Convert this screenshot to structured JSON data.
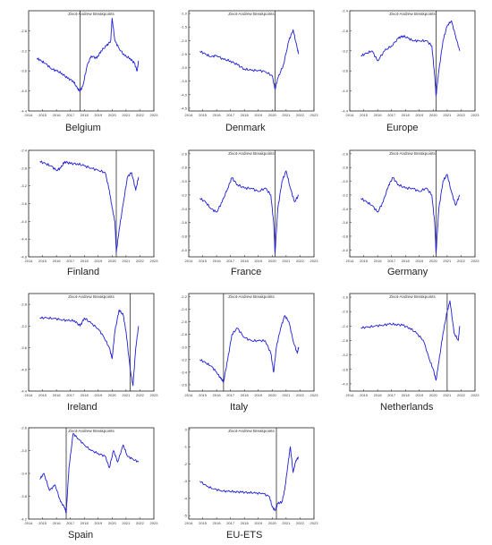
{
  "chart_data": [
    {
      "type": "line",
      "caption": "Belgium",
      "title": "Zivot-Andrew Breakpoints",
      "x_ticks": [
        "2014",
        "2015",
        "2016",
        "2017",
        "2018",
        "2019",
        "2020",
        "2021",
        "2022",
        "2023"
      ],
      "y_ticks": [
        "-2.8",
        "-3.2",
        "-3.6",
        "-4.0",
        "-4.4"
      ],
      "ylim": [
        -4.4,
        -2.4
      ],
      "xlim": [
        2014,
        2023
      ],
      "breakpoint": 2017.7,
      "series": [
        {
          "x": [
            2014.6,
            2014.9,
            2015.2,
            2015.6,
            2016.0,
            2016.4,
            2016.8,
            2017.2,
            2017.5,
            2017.7,
            2017.9,
            2018.2,
            2018.5,
            2018.9,
            2019.2,
            2019.6,
            2019.9,
            2020.0,
            2020.2,
            2020.5,
            2020.9,
            2021.3,
            2021.6,
            2021.8,
            2021.9
          ],
          "y": [
            -3.35,
            -3.4,
            -3.45,
            -3.55,
            -3.6,
            -3.65,
            -3.75,
            -3.8,
            -3.95,
            -4.0,
            -3.9,
            -3.5,
            -3.3,
            -3.35,
            -3.2,
            -3.1,
            -3.0,
            -2.55,
            -3.0,
            -3.15,
            -3.3,
            -3.35,
            -3.45,
            -3.6,
            -3.4
          ]
        }
      ]
    },
    {
      "type": "line",
      "caption": "Denmark",
      "title": "Zivot-Andrew Breakpoints",
      "x_ticks": [
        "2014",
        "2015",
        "2016",
        "2017",
        "2018",
        "2019",
        "2020",
        "2021",
        "2022",
        "2023"
      ],
      "y_ticks": [
        "-1.0",
        "-1.5",
        "-2.0",
        "-2.5",
        "-3.0",
        "-3.5",
        "-4.0",
        "-4.5"
      ],
      "ylim": [
        -4.6,
        -0.9
      ],
      "xlim": [
        2014,
        2023
      ],
      "breakpoint": 2020.2,
      "series": [
        {
          "x": [
            2014.8,
            2015.2,
            2015.6,
            2016.0,
            2016.5,
            2017.0,
            2017.5,
            2018.0,
            2018.5,
            2019.0,
            2019.5,
            2020.0,
            2020.2,
            2020.4,
            2020.8,
            2021.2,
            2021.5,
            2021.8,
            2021.9
          ],
          "y": [
            -2.4,
            -2.5,
            -2.6,
            -2.55,
            -2.7,
            -2.75,
            -2.9,
            -3.05,
            -3.1,
            -3.1,
            -3.15,
            -3.3,
            -3.8,
            -3.4,
            -2.9,
            -2.0,
            -1.6,
            -2.3,
            -2.5
          ]
        }
      ]
    },
    {
      "type": "line",
      "caption": "Europe",
      "title": "Zivot-Andrew Breakpoints",
      "x_ticks": [
        "2014",
        "2015",
        "2016",
        "2017",
        "2018",
        "2019",
        "2020",
        "2021",
        "2022",
        "2023"
      ],
      "y_ticks": [
        "-2.4",
        "-2.8",
        "-3.2",
        "-3.6",
        "-4.0",
        "-4.4"
      ],
      "ylim": [
        -4.4,
        -2.4
      ],
      "xlim": [
        2014,
        2023
      ],
      "breakpoint": 2020.2,
      "series": [
        {
          "x": [
            2014.8,
            2015.2,
            2015.6,
            2016.0,
            2016.5,
            2017.0,
            2017.5,
            2017.8,
            2018.2,
            2018.6,
            2019.0,
            2019.5,
            2019.9,
            2020.1,
            2020.2,
            2020.4,
            2020.7,
            2021.0,
            2021.3,
            2021.6,
            2021.9
          ],
          "y": [
            -3.3,
            -3.25,
            -3.2,
            -3.4,
            -3.2,
            -3.1,
            -2.95,
            -2.9,
            -2.95,
            -3.0,
            -3.0,
            -3.0,
            -3.1,
            -3.7,
            -4.1,
            -3.6,
            -3.0,
            -2.7,
            -2.6,
            -2.9,
            -3.2
          ]
        }
      ]
    },
    {
      "type": "line",
      "caption": "Finland",
      "title": "",
      "x_ticks": [
        "2014",
        "2015",
        "2016",
        "2017",
        "2018",
        "2019",
        "2020",
        "2021",
        "2022",
        "2023"
      ],
      "y_ticks": [
        "-2.4",
        "-2.8",
        "-3.2",
        "-3.6",
        "-4.0",
        "-4.4",
        "-4.8"
      ],
      "ylim": [
        -4.8,
        -2.4
      ],
      "xlim": [
        2014,
        2023
      ],
      "breakpoint": 2020.3,
      "series": [
        {
          "x": [
            2014.8,
            2015.2,
            2015.6,
            2016.0,
            2016.3,
            2016.6,
            2017.0,
            2017.5,
            2018.0,
            2018.5,
            2019.0,
            2019.5,
            2019.8,
            2020.0,
            2020.2,
            2020.3,
            2020.5,
            2020.8,
            2021.1,
            2021.4,
            2021.7,
            2021.9
          ],
          "y": [
            -2.65,
            -2.7,
            -2.75,
            -2.85,
            -2.8,
            -2.65,
            -2.7,
            -2.7,
            -2.75,
            -2.8,
            -2.85,
            -2.9,
            -3.3,
            -3.7,
            -4.0,
            -4.7,
            -4.2,
            -3.6,
            -3.0,
            -2.9,
            -3.3,
            -3.0
          ]
        }
      ]
    },
    {
      "type": "line",
      "caption": "France",
      "title": "Zivot-Andrew Breakpoints",
      "x_ticks": [
        "2014",
        "2015",
        "2016",
        "2017",
        "2018",
        "2019",
        "2020",
        "2021",
        "2022",
        "2023"
      ],
      "y_ticks": [
        "-2.6",
        "-2.8",
        "-3.0",
        "-3.2",
        "-3.4",
        "-3.6",
        "-3.8",
        "-4.0"
      ],
      "ylim": [
        -4.1,
        -2.55
      ],
      "xlim": [
        2014,
        2023
      ],
      "breakpoint": 2020.2,
      "series": [
        {
          "x": [
            2014.8,
            2015.2,
            2015.6,
            2016.0,
            2016.4,
            2016.8,
            2017.1,
            2017.5,
            2018.0,
            2018.5,
            2019.0,
            2019.5,
            2019.9,
            2020.1,
            2020.2,
            2020.4,
            2020.7,
            2021.0,
            2021.3,
            2021.6,
            2021.9
          ],
          "y": [
            -3.25,
            -3.3,
            -3.4,
            -3.45,
            -3.3,
            -3.1,
            -2.95,
            -3.05,
            -3.1,
            -3.1,
            -3.15,
            -3.1,
            -3.2,
            -3.6,
            -4.05,
            -3.4,
            -3.0,
            -2.85,
            -3.1,
            -3.3,
            -3.2
          ]
        }
      ]
    },
    {
      "type": "line",
      "caption": "Germany",
      "title": "Zivot-Andrew Breakpoints",
      "x_ticks": [
        "2014",
        "2015",
        "2016",
        "2017",
        "2018",
        "2019",
        "2020",
        "2021",
        "2022",
        "2023"
      ],
      "y_ticks": [
        "-2.6",
        "-2.8",
        "-3.0",
        "-3.2",
        "-3.4",
        "-3.6",
        "-3.8",
        "-4.0"
      ],
      "ylim": [
        -4.1,
        -2.55
      ],
      "xlim": [
        2014,
        2023
      ],
      "breakpoint": 2020.2,
      "series": [
        {
          "x": [
            2014.8,
            2015.2,
            2015.6,
            2016.0,
            2016.4,
            2016.8,
            2017.1,
            2017.5,
            2018.0,
            2018.5,
            2019.0,
            2019.5,
            2019.9,
            2020.1,
            2020.2,
            2020.4,
            2020.7,
            2021.0,
            2021.3,
            2021.6,
            2021.9
          ],
          "y": [
            -3.25,
            -3.3,
            -3.35,
            -3.45,
            -3.3,
            -3.05,
            -2.95,
            -3.05,
            -3.1,
            -3.1,
            -3.15,
            -3.1,
            -3.2,
            -3.6,
            -4.05,
            -3.4,
            -3.0,
            -2.9,
            -3.15,
            -3.35,
            -3.2
          ]
        }
      ]
    },
    {
      "type": "line",
      "caption": "Ireland",
      "title": "Zivot-Andrew Breakpoints",
      "x_ticks": [
        "2014",
        "2015",
        "2016",
        "2017",
        "2018",
        "2019",
        "2020",
        "2021",
        "2022",
        "2023"
      ],
      "y_ticks": [
        "-2.8",
        "-3.2",
        "-3.6",
        "-4.0",
        "-4.4"
      ],
      "ylim": [
        -4.4,
        -2.6
      ],
      "xlim": [
        2014,
        2023
      ],
      "breakpoint": 2021.3,
      "series": [
        {
          "x": [
            2014.8,
            2015.3,
            2015.8,
            2016.3,
            2016.8,
            2017.3,
            2017.7,
            2018.0,
            2018.5,
            2019.0,
            2019.4,
            2019.8,
            2020.0,
            2020.2,
            2020.5,
            2020.8,
            2021.0,
            2021.3,
            2021.5,
            2021.7,
            2021.9
          ],
          "y": [
            -3.05,
            -3.05,
            -3.06,
            -3.08,
            -3.1,
            -3.1,
            -3.2,
            -3.05,
            -3.15,
            -3.25,
            -3.4,
            -3.6,
            -3.8,
            -3.3,
            -2.9,
            -3.0,
            -3.3,
            -4.0,
            -4.3,
            -3.6,
            -3.2
          ]
        }
      ]
    },
    {
      "type": "line",
      "caption": "Italy",
      "title": "Zivot-Andrew Breakpoints",
      "x_ticks": [
        "2014",
        "2015",
        "2016",
        "2017",
        "2018",
        "2019",
        "2020",
        "2021",
        "2022",
        "2023"
      ],
      "y_ticks": [
        "-2.2",
        "-2.4",
        "-2.6",
        "-2.8",
        "-3.0",
        "-3.2",
        "-3.4",
        "-3.6"
      ],
      "ylim": [
        -3.7,
        -2.15
      ],
      "xlim": [
        2014,
        2023
      ],
      "breakpoint": 2016.5,
      "series": [
        {
          "x": [
            2014.8,
            2015.2,
            2015.6,
            2016.0,
            2016.3,
            2016.5,
            2016.8,
            2017.1,
            2017.5,
            2018.0,
            2018.5,
            2019.0,
            2019.5,
            2019.9,
            2020.1,
            2020.3,
            2020.6,
            2020.9,
            2021.2,
            2021.5,
            2021.8,
            2021.9
          ],
          "y": [
            -3.2,
            -3.25,
            -3.3,
            -3.4,
            -3.5,
            -3.55,
            -3.2,
            -2.8,
            -2.7,
            -2.85,
            -2.9,
            -2.9,
            -2.9,
            -3.1,
            -3.4,
            -3.0,
            -2.7,
            -2.5,
            -2.6,
            -2.9,
            -3.1,
            -3.0
          ]
        }
      ]
    },
    {
      "type": "line",
      "caption": "Netherlands",
      "title": "Zivot-Andrew Breakpoints",
      "x_ticks": [
        "2014",
        "2015",
        "2016",
        "2017",
        "2018",
        "2019",
        "2020",
        "2021",
        "2022",
        "2023"
      ],
      "y_ticks": [
        "-1.6",
        "-2.0",
        "-2.4",
        "-2.8",
        "-3.2",
        "-3.6",
        "-4.0"
      ],
      "ylim": [
        -4.2,
        -1.5
      ],
      "xlim": [
        2014,
        2023
      ],
      "breakpoint": 2021.0,
      "series": [
        {
          "x": [
            2014.8,
            2015.3,
            2015.8,
            2016.3,
            2016.8,
            2017.3,
            2017.8,
            2018.3,
            2018.8,
            2019.3,
            2019.7,
            2020.0,
            2020.2,
            2020.4,
            2020.7,
            2021.0,
            2021.2,
            2021.5,
            2021.8,
            2021.9
          ],
          "y": [
            -2.45,
            -2.43,
            -2.4,
            -2.38,
            -2.35,
            -2.35,
            -2.38,
            -2.45,
            -2.6,
            -2.8,
            -3.3,
            -3.6,
            -3.9,
            -3.4,
            -2.6,
            -2.0,
            -1.7,
            -2.6,
            -2.8,
            -2.4
          ]
        }
      ]
    },
    {
      "type": "line",
      "caption": "Spain",
      "title": "Zivot-Andrew Breakpoints",
      "x_ticks": [
        "2014",
        "2015",
        "2016",
        "2017",
        "2018",
        "2019",
        "2020",
        "2021",
        "2022",
        "2023"
      ],
      "y_ticks": [
        "-2.6",
        "-3.0",
        "-3.4",
        "-3.8",
        "-4.2"
      ],
      "ylim": [
        -4.2,
        -2.6
      ],
      "xlim": [
        2014,
        2023
      ],
      "breakpoint": 2016.7,
      "series": [
        {
          "x": [
            2014.8,
            2015.1,
            2015.5,
            2015.9,
            2016.3,
            2016.6,
            2016.7,
            2016.9,
            2017.2,
            2017.6,
            2018.0,
            2018.5,
            2019.0,
            2019.5,
            2019.8,
            2020.1,
            2020.4,
            2020.8,
            2021.1,
            2021.5,
            2021.9
          ],
          "y": [
            -3.5,
            -3.4,
            -3.7,
            -3.6,
            -3.9,
            -4.0,
            -4.1,
            -3.3,
            -2.7,
            -2.8,
            -2.9,
            -3.0,
            -3.05,
            -3.1,
            -3.3,
            -3.0,
            -3.2,
            -2.9,
            -3.1,
            -3.15,
            -3.2
          ]
        }
      ]
    },
    {
      "type": "line",
      "caption": "EU-ETS",
      "title": "Zivot-Andrew Breakpoints",
      "x_ticks": [
        "2014",
        "2015",
        "2016",
        "2017",
        "2018",
        "2019",
        "2020",
        "2021",
        "2022",
        "2023"
      ],
      "y_ticks": [
        "0",
        "-1",
        "-2",
        "-3",
        "-4",
        "-5"
      ],
      "ylim": [
        -5.2,
        0.1
      ],
      "xlim": [
        2014,
        2023
      ],
      "breakpoint": 2020.3,
      "series": [
        {
          "x": [
            2014.8,
            2015.3,
            2015.8,
            2016.3,
            2016.8,
            2017.3,
            2017.8,
            2018.3,
            2018.8,
            2019.3,
            2019.8,
            2020.0,
            2020.2,
            2020.4,
            2020.7,
            2020.9,
            2021.1,
            2021.3,
            2021.5,
            2021.7,
            2021.9
          ],
          "y": [
            -3.0,
            -3.3,
            -3.45,
            -3.55,
            -3.6,
            -3.6,
            -3.65,
            -3.65,
            -3.7,
            -3.7,
            -3.9,
            -4.5,
            -4.7,
            -4.3,
            -4.2,
            -3.5,
            -2.2,
            -1.0,
            -2.5,
            -1.8,
            -1.6
          ]
        }
      ]
    }
  ]
}
